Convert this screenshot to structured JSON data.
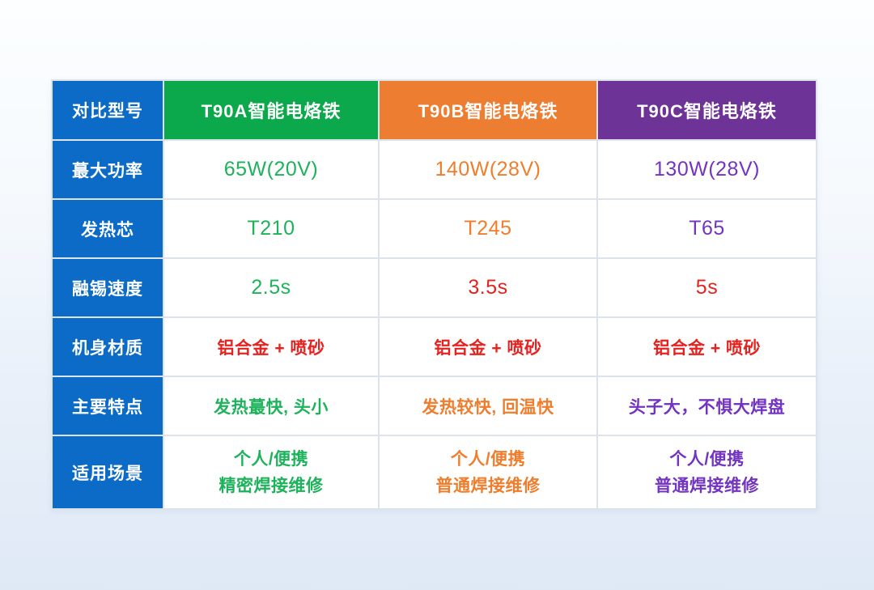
{
  "palette": {
    "label_blue": "#0c6bc6",
    "green": "#0ca94c",
    "orange": "#ec7d31",
    "purple": "#6e3397",
    "red_text": "#e42321",
    "green_text": "#1fb25c",
    "orange_text": "#ee7e2d",
    "purple_text": "#7334c0",
    "line": "#dde3eb"
  },
  "table": {
    "corner": {
      "label": "对比型号",
      "bg": "#0c6bc6"
    },
    "columns": [
      {
        "header": "T90A智能电烙铁",
        "bg": "#0ca94c"
      },
      {
        "header": "T90B智能电烙铁",
        "bg": "#ec7d31"
      },
      {
        "header": "T90C智能电烙铁",
        "bg": "#6e3397"
      }
    ],
    "rows": [
      {
        "label": "蕞大功率",
        "label_bg": "#0c6bc6",
        "cells": [
          {
            "text": "65W(20V)",
            "color": "#1fb25c"
          },
          {
            "text": "140W(28V)",
            "color": "#ee7e2d"
          },
          {
            "text": "130W(28V)",
            "color": "#7334c0"
          }
        ]
      },
      {
        "label": "发热芯",
        "label_bg": "#0c6bc6",
        "cells": [
          {
            "text": "T210",
            "color": "#1fb25c"
          },
          {
            "text": "T245",
            "color": "#ee7e2d"
          },
          {
            "text": "T65",
            "color": "#7334c0"
          }
        ]
      },
      {
        "label": "融锡速度",
        "label_bg": "#0c6bc6",
        "cells": [
          {
            "text": "2.5s",
            "color": "#1fb25c"
          },
          {
            "text": "3.5s",
            "color": "#e42321"
          },
          {
            "text": "5s",
            "color": "#e42321"
          }
        ]
      },
      {
        "label": "机身材质",
        "label_bg": "#0c6bc6",
        "cells": [
          {
            "text": "铝合金 + 喷砂",
            "color": "#e42321"
          },
          {
            "text": "铝合金 + 喷砂",
            "color": "#e42321"
          },
          {
            "text": "铝合金 + 喷砂",
            "color": "#e42321"
          }
        ]
      },
      {
        "label": "主要特点",
        "label_bg": "#0c6bc6",
        "cells": [
          {
            "text": "发热蕞快, 头小",
            "color": "#1fb25c"
          },
          {
            "text": "发热较快, 回温快",
            "color": "#ee7e2d"
          },
          {
            "text": "头子大，不惧大焊盘",
            "color": "#7334c0"
          }
        ]
      },
      {
        "label": "适用场景",
        "label_bg": "#0c6bc6",
        "cells": [
          {
            "line1": "个人/便携",
            "line2": "精密焊接维修",
            "color": "#1fb25c"
          },
          {
            "line1": "个人/便携",
            "line2": "普通焊接维修",
            "color": "#ee7e2d"
          },
          {
            "line1": "个人/便携",
            "line2": "普通焊接维修",
            "color": "#7334c0"
          }
        ]
      }
    ]
  }
}
